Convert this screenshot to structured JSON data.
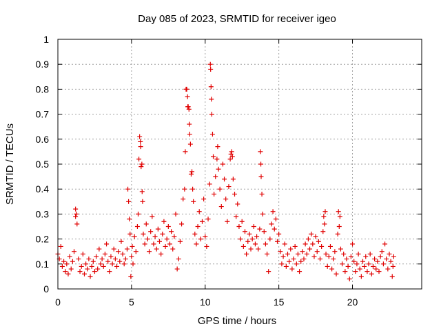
{
  "chart_data": {
    "type": "scatter",
    "title": "Day 085 of 2023, SRMTID for receiver igeo",
    "xlabel": "GPS time / hours",
    "ylabel": "SRMTID / TECUs",
    "xlim": [
      0,
      24.7
    ],
    "ylim": [
      0,
      1
    ],
    "x_ticks": [
      0,
      5,
      10,
      15,
      20
    ],
    "x_tick_labels": [
      "0",
      "5",
      "10",
      "15",
      "20"
    ],
    "y_ticks": [
      0,
      0.1,
      0.2,
      0.3,
      0.4,
      0.5,
      0.6,
      0.7,
      0.8,
      0.9,
      1
    ],
    "y_tick_labels": [
      "0",
      "0.1",
      "0.2",
      "0.3",
      "0.4",
      "0.5",
      "0.6",
      "0.7",
      "0.8",
      "0.9",
      "1"
    ],
    "grid": true,
    "marker": "+",
    "color": "#e00000",
    "series": [
      {
        "name": "SRMTID",
        "points": [
          [
            0.0,
            0.14
          ],
          [
            0.1,
            0.12
          ],
          [
            0.2,
            0.17
          ],
          [
            0.3,
            0.09
          ],
          [
            0.4,
            0.11
          ],
          [
            0.5,
            0.07
          ],
          [
            0.6,
            0.1
          ],
          [
            0.7,
            0.06
          ],
          [
            0.8,
            0.13
          ],
          [
            0.9,
            0.08
          ],
          [
            1.0,
            0.11
          ],
          [
            1.1,
            0.15
          ],
          [
            1.2,
            0.32
          ],
          [
            1.2,
            0.29
          ],
          [
            1.25,
            0.3
          ],
          [
            1.3,
            0.26
          ],
          [
            1.4,
            0.12
          ],
          [
            1.5,
            0.07
          ],
          [
            1.6,
            0.09
          ],
          [
            1.7,
            0.14
          ],
          [
            1.8,
            0.06
          ],
          [
            1.9,
            0.1
          ],
          [
            2.0,
            0.08
          ],
          [
            2.1,
            0.12
          ],
          [
            2.2,
            0.05
          ],
          [
            2.3,
            0.09
          ],
          [
            2.4,
            0.11
          ],
          [
            2.5,
            0.07
          ],
          [
            2.6,
            0.13
          ],
          [
            2.7,
            0.08
          ],
          [
            2.8,
            0.16
          ],
          [
            2.9,
            0.1
          ],
          [
            3.0,
            0.12
          ],
          [
            3.1,
            0.09
          ],
          [
            3.2,
            0.14
          ],
          [
            3.3,
            0.18
          ],
          [
            3.4,
            0.11
          ],
          [
            3.5,
            0.07
          ],
          [
            3.6,
            0.13
          ],
          [
            3.7,
            0.1
          ],
          [
            3.8,
            0.16
          ],
          [
            3.9,
            0.12
          ],
          [
            4.0,
            0.09
          ],
          [
            4.1,
            0.15
          ],
          [
            4.2,
            0.11
          ],
          [
            4.3,
            0.19
          ],
          [
            4.4,
            0.14
          ],
          [
            4.5,
            0.1
          ],
          [
            4.6,
            0.12
          ],
          [
            4.7,
            0.16
          ],
          [
            4.75,
            0.4
          ],
          [
            4.8,
            0.35
          ],
          [
            4.85,
            0.28
          ],
          [
            4.9,
            0.22
          ],
          [
            4.95,
            0.05
          ],
          [
            5.0,
            0.13
          ],
          [
            5.05,
            0.17
          ],
          [
            5.1,
            0.1
          ],
          [
            5.2,
            0.21
          ],
          [
            5.3,
            0.15
          ],
          [
            5.4,
            0.25
          ],
          [
            5.45,
            0.3
          ],
          [
            5.5,
            0.52
          ],
          [
            5.55,
            0.61
          ],
          [
            5.6,
            0.59
          ],
          [
            5.62,
            0.57
          ],
          [
            5.65,
            0.49
          ],
          [
            5.7,
            0.5
          ],
          [
            5.72,
            0.39
          ],
          [
            5.75,
            0.35
          ],
          [
            5.8,
            0.22
          ],
          [
            5.9,
            0.18
          ],
          [
            6.0,
            0.26
          ],
          [
            6.1,
            0.2
          ],
          [
            6.2,
            0.15
          ],
          [
            6.3,
            0.23
          ],
          [
            6.4,
            0.29
          ],
          [
            6.5,
            0.18
          ],
          [
            6.6,
            0.21
          ],
          [
            6.7,
            0.16
          ],
          [
            6.8,
            0.24
          ],
          [
            6.9,
            0.19
          ],
          [
            7.0,
            0.14
          ],
          [
            7.1,
            0.22
          ],
          [
            7.2,
            0.27
          ],
          [
            7.3,
            0.17
          ],
          [
            7.4,
            0.2
          ],
          [
            7.5,
            0.25
          ],
          [
            7.6,
            0.18
          ],
          [
            7.7,
            0.23
          ],
          [
            7.8,
            0.16
          ],
          [
            7.9,
            0.21
          ],
          [
            8.0,
            0.3
          ],
          [
            8.1,
            0.08
          ],
          [
            8.2,
            0.12
          ],
          [
            8.3,
            0.19
          ],
          [
            8.4,
            0.26
          ],
          [
            8.5,
            0.36
          ],
          [
            8.6,
            0.4
          ],
          [
            8.65,
            0.55
          ],
          [
            8.7,
            0.8
          ],
          [
            8.75,
            0.8
          ],
          [
            8.8,
            0.77
          ],
          [
            8.82,
            0.73
          ],
          [
            8.85,
            0.73
          ],
          [
            8.9,
            0.72
          ],
          [
            8.92,
            0.66
          ],
          [
            8.95,
            0.62
          ],
          [
            9.0,
            0.58
          ],
          [
            9.05,
            0.46
          ],
          [
            9.1,
            0.47
          ],
          [
            9.15,
            0.4
          ],
          [
            9.2,
            0.35
          ],
          [
            9.3,
            0.22
          ],
          [
            9.4,
            0.18
          ],
          [
            9.5,
            0.25
          ],
          [
            9.6,
            0.31
          ],
          [
            9.7,
            0.2
          ],
          [
            9.8,
            0.27
          ],
          [
            9.9,
            0.36
          ],
          [
            10.0,
            0.21
          ],
          [
            10.1,
            0.17
          ],
          [
            10.2,
            0.28
          ],
          [
            10.3,
            0.42
          ],
          [
            10.35,
            0.9
          ],
          [
            10.37,
            0.88
          ],
          [
            10.4,
            0.81
          ],
          [
            10.42,
            0.76
          ],
          [
            10.45,
            0.7
          ],
          [
            10.5,
            0.62
          ],
          [
            10.55,
            0.53
          ],
          [
            10.6,
            0.38
          ],
          [
            10.7,
            0.45
          ],
          [
            10.8,
            0.52
          ],
          [
            10.85,
            0.57
          ],
          [
            10.9,
            0.48
          ],
          [
            11.0,
            0.4
          ],
          [
            11.1,
            0.33
          ],
          [
            11.2,
            0.5
          ],
          [
            11.3,
            0.44
          ],
          [
            11.4,
            0.36
          ],
          [
            11.5,
            0.27
          ],
          [
            11.6,
            0.41
          ],
          [
            11.7,
            0.52
          ],
          [
            11.75,
            0.54
          ],
          [
            11.8,
            0.55
          ],
          [
            11.85,
            0.53
          ],
          [
            11.9,
            0.44
          ],
          [
            12.0,
            0.38
          ],
          [
            12.1,
            0.29
          ],
          [
            12.2,
            0.34
          ],
          [
            12.3,
            0.25
          ],
          [
            12.4,
            0.2
          ],
          [
            12.5,
            0.27
          ],
          [
            12.6,
            0.17
          ],
          [
            12.7,
            0.23
          ],
          [
            12.8,
            0.14
          ],
          [
            12.9,
            0.19
          ],
          [
            13.0,
            0.22
          ],
          [
            13.1,
            0.16
          ],
          [
            13.2,
            0.2
          ],
          [
            13.3,
            0.25
          ],
          [
            13.4,
            0.18
          ],
          [
            13.5,
            0.21
          ],
          [
            13.6,
            0.16
          ],
          [
            13.7,
            0.24
          ],
          [
            13.75,
            0.55
          ],
          [
            13.78,
            0.5
          ],
          [
            13.8,
            0.45
          ],
          [
            13.85,
            0.38
          ],
          [
            13.9,
            0.3
          ],
          [
            14.0,
            0.23
          ],
          [
            14.1,
            0.18
          ],
          [
            14.2,
            0.14
          ],
          [
            14.3,
            0.07
          ],
          [
            14.4,
            0.2
          ],
          [
            14.5,
            0.26
          ],
          [
            14.6,
            0.31
          ],
          [
            14.7,
            0.24
          ],
          [
            14.8,
            0.28
          ],
          [
            14.9,
            0.19
          ],
          [
            15.0,
            0.22
          ],
          [
            15.1,
            0.15
          ],
          [
            15.2,
            0.1
          ],
          [
            15.3,
            0.13
          ],
          [
            15.4,
            0.18
          ],
          [
            15.5,
            0.09
          ],
          [
            15.6,
            0.14
          ],
          [
            15.7,
            0.11
          ],
          [
            15.8,
            0.16
          ],
          [
            15.9,
            0.08
          ],
          [
            16.0,
            0.12
          ],
          [
            16.1,
            0.17
          ],
          [
            16.2,
            0.1
          ],
          [
            16.3,
            0.14
          ],
          [
            16.4,
            0.07
          ],
          [
            16.5,
            0.11
          ],
          [
            16.6,
            0.15
          ],
          [
            16.7,
            0.12
          ],
          [
            16.8,
            0.18
          ],
          [
            16.9,
            0.14
          ],
          [
            17.0,
            0.2
          ],
          [
            17.1,
            0.16
          ],
          [
            17.2,
            0.22
          ],
          [
            17.3,
            0.18
          ],
          [
            17.4,
            0.13
          ],
          [
            17.5,
            0.21
          ],
          [
            17.6,
            0.15
          ],
          [
            17.7,
            0.19
          ],
          [
            17.8,
            0.12
          ],
          [
            17.9,
            0.17
          ],
          [
            18.0,
            0.23
          ],
          [
            18.05,
            0.29
          ],
          [
            18.1,
            0.26
          ],
          [
            18.15,
            0.31
          ],
          [
            18.2,
            0.14
          ],
          [
            18.3,
            0.09
          ],
          [
            18.4,
            0.13
          ],
          [
            18.5,
            0.17
          ],
          [
            18.6,
            0.08
          ],
          [
            18.7,
            0.12
          ],
          [
            18.8,
            0.15
          ],
          [
            18.9,
            0.06
          ],
          [
            19.0,
            0.22
          ],
          [
            19.05,
            0.31
          ],
          [
            19.1,
            0.25
          ],
          [
            19.15,
            0.29
          ],
          [
            19.2,
            0.16
          ],
          [
            19.3,
            0.1
          ],
          [
            19.4,
            0.14
          ],
          [
            19.5,
            0.07
          ],
          [
            19.6,
            0.12
          ],
          [
            19.7,
            0.09
          ],
          [
            19.8,
            0.04
          ],
          [
            19.9,
            0.13
          ],
          [
            20.0,
            0.18
          ],
          [
            20.1,
            0.11
          ],
          [
            20.2,
            0.07
          ],
          [
            20.3,
            0.1
          ],
          [
            20.4,
            0.14
          ],
          [
            20.5,
            0.08
          ],
          [
            20.6,
            0.05
          ],
          [
            20.7,
            0.11
          ],
          [
            20.8,
            0.09
          ],
          [
            20.9,
            0.13
          ],
          [
            21.0,
            0.07
          ],
          [
            21.1,
            0.1
          ],
          [
            21.2,
            0.14
          ],
          [
            21.3,
            0.06
          ],
          [
            21.4,
            0.09
          ],
          [
            21.5,
            0.12
          ],
          [
            21.6,
            0.08
          ],
          [
            21.7,
            0.11
          ],
          [
            21.8,
            0.07
          ],
          [
            21.9,
            0.13
          ],
          [
            22.0,
            0.15
          ],
          [
            22.1,
            0.1
          ],
          [
            22.2,
            0.18
          ],
          [
            22.3,
            0.12
          ],
          [
            22.4,
            0.08
          ],
          [
            22.5,
            0.14
          ],
          [
            22.6,
            0.11
          ],
          [
            22.7,
            0.05
          ],
          [
            22.75,
            0.09
          ],
          [
            22.8,
            0.13
          ]
        ]
      }
    ]
  }
}
